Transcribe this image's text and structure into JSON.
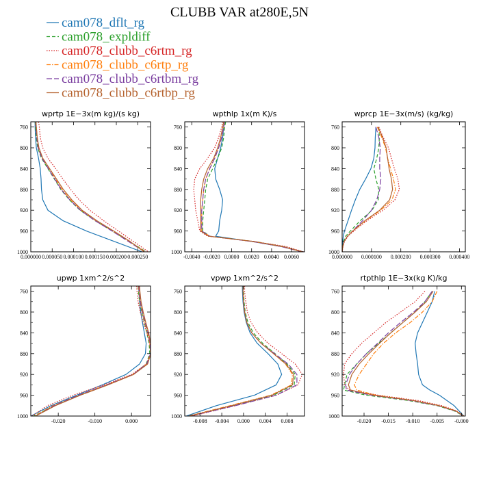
{
  "figure": {
    "title": "CLUBB VAR at280E,5N"
  },
  "legend": [
    {
      "label": "cam078_dflt_rg",
      "color": "#1f77b4",
      "dash": "solid"
    },
    {
      "label": "cam078_expldiff",
      "color": "#2ca02c",
      "dash": "dash"
    },
    {
      "label": "cam078_clubb_c6rtm_rg",
      "color": "#d62728",
      "dash": "dot"
    },
    {
      "label": "cam078_clubb_c6rtp_rg",
      "color": "#ff7f0e",
      "dash": "dashdot"
    },
    {
      "label": "cam078_clubb_c6rtbm_rg",
      "color": "#7b3fa0",
      "dash": "longdash"
    },
    {
      "label": "cam078_clubb_c6rtbp_rg",
      "color": "#b5622e",
      "dash": "solid"
    }
  ],
  "chart_data": [
    {
      "type": "line",
      "title": "wprtp  1E−3x(m kg)/(s kg)",
      "xlim": [
        0.0,
        0.00028
      ],
      "ylim": [
        1000,
        750
      ],
      "xticks": [
        0.0,
        5e-05,
        0.0001,
        0.00015,
        0.0002,
        0.00025
      ],
      "xtick_labels": [
        "0.000000",
        "0.000050",
        "0.000100",
        "0.000150",
        "0.000200",
        "0.000250"
      ],
      "yticks": [
        760,
        800,
        840,
        880,
        920,
        960,
        1000
      ],
      "y": [
        750,
        760,
        780,
        800,
        820,
        840,
        860,
        880,
        900,
        920,
        940,
        960,
        980,
        1000
      ],
      "series": [
        {
          "values": [
            1e-05,
            1e-05,
            1.1e-05,
            1.3e-05,
            1.8e-05,
            2.2e-05,
            2.4e-05,
            2.5e-05,
            2.8e-05,
            4e-05,
            7.5e-05,
            0.00013,
            0.000195,
            0.00026
          ]
        },
        {
          "values": [
            1e-05,
            1.1e-05,
            1.3e-05,
            1.6e-05,
            2.5e-05,
            4e-05,
            5.5e-05,
            7e-05,
            9e-05,
            0.000115,
            0.00015,
            0.00019,
            0.00023,
            0.00027
          ]
        },
        {
          "values": [
            1.8e-05,
            2e-05,
            2.2e-05,
            2.8e-05,
            4e-05,
            5.8e-05,
            7.5e-05,
            9.3e-05,
            0.000113,
            0.000138,
            0.00017,
            0.000205,
            0.00024,
            0.000275
          ]
        },
        {
          "values": [
            1.2e-05,
            1.3e-05,
            1.5e-05,
            1.8e-05,
            2.7e-05,
            4.3e-05,
            5.8e-05,
            7.3e-05,
            9.3e-05,
            0.000118,
            0.000152,
            0.000192,
            0.00023,
            0.000268
          ]
        },
        {
          "values": [
            1.1e-05,
            1.2e-05,
            1.4e-05,
            1.7e-05,
            2.6e-05,
            4.1e-05,
            5.6e-05,
            7.1e-05,
            9.1e-05,
            0.000116,
            0.00015,
            0.00019,
            0.000228,
            0.000266
          ]
        },
        {
          "values": [
            1.2e-05,
            1.3e-05,
            1.5e-05,
            1.9e-05,
            2.8e-05,
            4.4e-05,
            6e-05,
            7.6e-05,
            9.6e-05,
            0.00012,
            0.000154,
            0.000194,
            0.000232,
            0.000265
          ]
        }
      ]
    },
    {
      "type": "line",
      "title": "wpthlp  1x(m K)/s",
      "xlim": [
        -0.0047,
        0.0073
      ],
      "ylim": [
        1000,
        750
      ],
      "xticks": [
        -0.004,
        -0.002,
        0.0,
        0.002,
        0.004,
        0.006
      ],
      "xtick_labels": [
        "-0.0040",
        "-0.0020",
        "0.0000",
        "0.0020",
        "0.0040",
        "0.0060"
      ],
      "yticks": [
        760,
        800,
        840,
        880,
        920,
        960,
        1000
      ],
      "y": [
        750,
        760,
        780,
        800,
        820,
        840,
        860,
        880,
        900,
        920,
        940,
        960,
        970,
        980,
        990,
        1000
      ],
      "series": [
        {
          "values": [
            -0.0007,
            -0.0008,
            -0.0009,
            -0.0011,
            -0.0014,
            -0.0017,
            -0.0016,
            -0.0012,
            -0.0009,
            -0.001,
            -0.0012,
            -0.0013,
            -0.0016,
            0.002,
            0.005,
            0.0072
          ]
        },
        {
          "values": [
            -0.0006,
            -0.0007,
            -0.0008,
            -0.001,
            -0.0014,
            -0.0019,
            -0.0024,
            -0.0026,
            -0.0027,
            -0.0028,
            -0.0029,
            -0.0029,
            -0.0022,
            0.0022,
            0.0052,
            0.007
          ]
        },
        {
          "values": [
            -0.0009,
            -0.001,
            -0.0013,
            -0.0017,
            -0.0024,
            -0.0032,
            -0.0037,
            -0.0038,
            -0.0037,
            -0.0036,
            -0.0034,
            -0.0032,
            -0.0024,
            0.0022,
            0.0055,
            0.0072
          ]
        },
        {
          "values": [
            -0.0007,
            -0.0008,
            -0.001,
            -0.0013,
            -0.0017,
            -0.0022,
            -0.0026,
            -0.0028,
            -0.0029,
            -0.003,
            -0.003,
            -0.003,
            -0.0022,
            0.002,
            0.005,
            0.007
          ]
        },
        {
          "values": [
            -0.0007,
            -0.0008,
            -0.001,
            -0.0013,
            -0.0017,
            -0.0022,
            -0.0026,
            -0.0028,
            -0.0029,
            -0.003,
            -0.003,
            -0.003,
            -0.0022,
            0.002,
            0.005,
            0.007
          ]
        },
        {
          "values": [
            -0.0008,
            -0.0009,
            -0.0011,
            -0.0014,
            -0.0018,
            -0.0024,
            -0.0028,
            -0.003,
            -0.0031,
            -0.0031,
            -0.0031,
            -0.0031,
            -0.0023,
            0.0022,
            0.0052,
            0.0071
          ]
        }
      ]
    },
    {
      "type": "line",
      "title": "wprcp  1E−3x(m/s) (kg/kg)",
      "xlim": [
        0.0,
        0.00042
      ],
      "ylim": [
        1000,
        750
      ],
      "xticks": [
        0.0,
        0.0001,
        0.0002,
        0.0003,
        0.0004
      ],
      "xtick_labels": [
        "0.000000",
        "0.000100",
        "0.000200",
        "0.000300",
        "0.000400"
      ],
      "yticks": [
        760,
        800,
        840,
        880,
        920,
        960,
        1000
      ],
      "y": [
        760,
        780,
        800,
        820,
        840,
        860,
        880,
        900,
        920,
        940,
        960,
        970,
        980,
        990,
        1000
      ],
      "series": [
        {
          "values": [
            0.000115,
            0.000113,
            0.000112,
            0.000108,
            9.8e-05,
            8e-05,
            6e-05,
            4.5e-05,
            3.2e-05,
            2e-05,
            8e-06,
            4e-06,
            2e-06,
            1e-06,
            0.0
          ]
        },
        {
          "values": [
            0.000125,
            0.000127,
            0.000125,
            0.000118,
            0.000108,
            0.000115,
            0.000125,
            0.000123,
            0.000102,
            6.2e-05,
            2.8e-05,
            1.2e-05,
            5e-06,
            2e-06,
            0.0
          ]
        },
        {
          "values": [
            0.000125,
            0.00014,
            0.000158,
            0.000168,
            0.000178,
            0.00019,
            0.000195,
            0.00018,
            0.00014,
            8.5e-05,
            4e-05,
            2e-05,
            8e-06,
            3e-06,
            0.0
          ]
        },
        {
          "values": [
            0.00012,
            0.000135,
            0.000148,
            0.000155,
            0.000165,
            0.000175,
            0.000182,
            0.00017,
            0.000132,
            8e-05,
            3.6e-05,
            1.8e-05,
            7e-06,
            2e-06,
            0.0
          ]
        },
        {
          "values": [
            0.000115,
            0.000125,
            0.00013,
            0.000128,
            0.000128,
            0.000132,
            0.000128,
            0.000118,
            0.0001,
            7e-05,
            3.6e-05,
            1.8e-05,
            7e-06,
            2e-06,
            0.0
          ]
        },
        {
          "values": [
            0.000122,
            0.000138,
            0.00015,
            0.000155,
            0.00016,
            0.000168,
            0.000172,
            0.000162,
            0.000128,
            7.8e-05,
            3.6e-05,
            1.8e-05,
            7e-06,
            2e-06,
            0.0
          ]
        }
      ]
    },
    {
      "type": "line",
      "title": "upwp  1xm^2/s^2",
      "xlim": [
        -0.0275,
        0.0052
      ],
      "ylim": [
        1000,
        750
      ],
      "xticks": [
        -0.02,
        -0.01,
        0.0
      ],
      "xtick_labels": [
        "-0.020",
        "-0.010",
        "0.000"
      ],
      "yticks": [
        760,
        800,
        840,
        880,
        920,
        960,
        1000
      ],
      "y": [
        750,
        760,
        780,
        800,
        820,
        840,
        860,
        880,
        900,
        920,
        940,
        960,
        980,
        1000
      ],
      "series": [
        {
          "values": [
            0.002,
            0.002,
            0.0022,
            0.0025,
            0.003,
            0.0035,
            0.004,
            0.0038,
            0.0022,
            -0.0015,
            -0.008,
            -0.015,
            -0.022,
            -0.0275
          ]
        },
        {
          "values": [
            0.0018,
            0.0019,
            0.0022,
            0.0028,
            0.0035,
            0.0042,
            0.0048,
            0.005,
            0.004,
            0.0005,
            -0.0065,
            -0.014,
            -0.021,
            -0.0268
          ]
        },
        {
          "values": [
            0.0014,
            0.0015,
            0.0018,
            0.0024,
            0.0032,
            0.0042,
            0.005,
            0.0052,
            0.004,
            0.0,
            -0.0075,
            -0.016,
            -0.023,
            -0.0272
          ]
        },
        {
          "values": [
            0.0019,
            0.002,
            0.0023,
            0.0029,
            0.0036,
            0.0044,
            0.005,
            0.0052,
            0.0042,
            0.0004,
            -0.0068,
            -0.0145,
            -0.0215,
            -0.0265
          ]
        },
        {
          "values": [
            0.002,
            0.0021,
            0.0024,
            0.003,
            0.0037,
            0.0045,
            0.0051,
            0.0052,
            0.0042,
            0.0004,
            -0.0068,
            -0.0145,
            -0.0212,
            -0.0262
          ]
        },
        {
          "values": [
            0.0022,
            0.0023,
            0.0026,
            0.0032,
            0.0039,
            0.0047,
            0.0052,
            0.0053,
            0.0044,
            0.0006,
            -0.0064,
            -0.014,
            -0.0208,
            -0.0262
          ]
        }
      ]
    },
    {
      "type": "line",
      "title": "vpwp  1xm^2/s^2",
      "xlim": [
        -0.0108,
        0.0112
      ],
      "ylim": [
        1000,
        750
      ],
      "xticks": [
        -0.008,
        -0.004,
        0.0,
        0.004,
        0.008
      ],
      "xtick_labels": [
        "-0.008",
        "-0.004",
        "0.000",
        "0.004",
        "0.008"
      ],
      "yticks": [
        760,
        800,
        840,
        880,
        920,
        960,
        1000
      ],
      "y": [
        750,
        760,
        780,
        800,
        820,
        840,
        860,
        880,
        900,
        920,
        940,
        960,
        980,
        1000
      ],
      "series": [
        {
          "values": [
            -0.0002,
            -0.0002,
            -0.0001,
            0.0001,
            0.0005,
            0.0012,
            0.0025,
            0.0045,
            0.0063,
            0.007,
            0.006,
            0.002,
            -0.005,
            -0.0105
          ]
        },
        {
          "values": [
            0.0,
            0.0,
            0.0001,
            0.0003,
            0.0008,
            0.0018,
            0.0035,
            0.0058,
            0.008,
            0.0095,
            0.0093,
            0.0055,
            -0.002,
            -0.01
          ]
        },
        {
          "values": [
            0.0002,
            0.0002,
            0.0004,
            0.0007,
            0.0014,
            0.0026,
            0.0045,
            0.007,
            0.0095,
            0.0108,
            0.01,
            0.006,
            -0.0015,
            -0.0095
          ]
        },
        {
          "values": [
            -0.0001,
            -0.0001,
            0.0,
            0.0002,
            0.0006,
            0.0015,
            0.0032,
            0.0055,
            0.0077,
            0.009,
            0.0088,
            0.005,
            -0.0025,
            -0.0102
          ]
        },
        {
          "values": [
            -0.0001,
            -0.0001,
            0.0,
            0.0002,
            0.0006,
            0.0015,
            0.0032,
            0.0057,
            0.0082,
            0.0098,
            0.0098,
            0.006,
            -0.0015,
            -0.0098
          ]
        },
        {
          "values": [
            -0.0001,
            -0.0001,
            0.0,
            0.0002,
            0.0006,
            0.0015,
            0.0032,
            0.0055,
            0.0078,
            0.0092,
            0.009,
            0.0052,
            -0.0022,
            -0.01
          ]
        }
      ]
    },
    {
      "type": "line",
      "title": "rtpthlp  1E−3x(kg K)/kg",
      "xlim": [
        -0.0245,
        0.0008
      ],
      "ylim": [
        1000,
        750
      ],
      "xticks": [
        -0.02,
        -0.015,
        -0.01,
        -0.005,
        0.0
      ],
      "xtick_labels": [
        "-0.020",
        "-0.015",
        "-0.010",
        "-0.005",
        "-0.000"
      ],
      "yticks": [
        760,
        800,
        840,
        880,
        920,
        960,
        1000
      ],
      "y": [
        760,
        780,
        800,
        820,
        840,
        860,
        880,
        900,
        920,
        940,
        950,
        960,
        970,
        980,
        990,
        1000
      ],
      "series": [
        {
          "values": [
            -0.0055,
            -0.006,
            -0.007,
            -0.008,
            -0.009,
            -0.0095,
            -0.0093,
            -0.009,
            -0.0088,
            -0.008,
            -0.0065,
            -0.0045,
            -0.003,
            -0.0015,
            -0.0005,
            0.0005
          ]
        },
        {
          "values": [
            -0.006,
            -0.0075,
            -0.0095,
            -0.012,
            -0.0145,
            -0.017,
            -0.0195,
            -0.0215,
            -0.0235,
            -0.024,
            -0.0242,
            -0.0195,
            -0.011,
            -0.005,
            -0.0015,
            0.0005
          ]
        },
        {
          "values": [
            -0.0075,
            -0.0095,
            -0.0125,
            -0.0155,
            -0.018,
            -0.0205,
            -0.0225,
            -0.024,
            -0.0242,
            -0.024,
            -0.023,
            -0.017,
            -0.009,
            -0.004,
            -0.001,
            0.0005
          ]
        },
        {
          "values": [
            -0.005,
            -0.006,
            -0.008,
            -0.0105,
            -0.0135,
            -0.016,
            -0.018,
            -0.0195,
            -0.021,
            -0.022,
            -0.0215,
            -0.0175,
            -0.01,
            -0.0045,
            -0.0012,
            0.0005
          ]
        },
        {
          "values": [
            -0.006,
            -0.0075,
            -0.0098,
            -0.0125,
            -0.015,
            -0.0172,
            -0.0195,
            -0.0215,
            -0.023,
            -0.0238,
            -0.0236,
            -0.0185,
            -0.0105,
            -0.0048,
            -0.0013,
            0.0005
          ]
        },
        {
          "values": [
            -0.0058,
            -0.0072,
            -0.0095,
            -0.012,
            -0.0145,
            -0.0168,
            -0.019,
            -0.021,
            -0.0225,
            -0.0232,
            -0.0228,
            -0.018,
            -0.01,
            -0.0046,
            -0.0012,
            0.0005
          ]
        }
      ]
    }
  ]
}
